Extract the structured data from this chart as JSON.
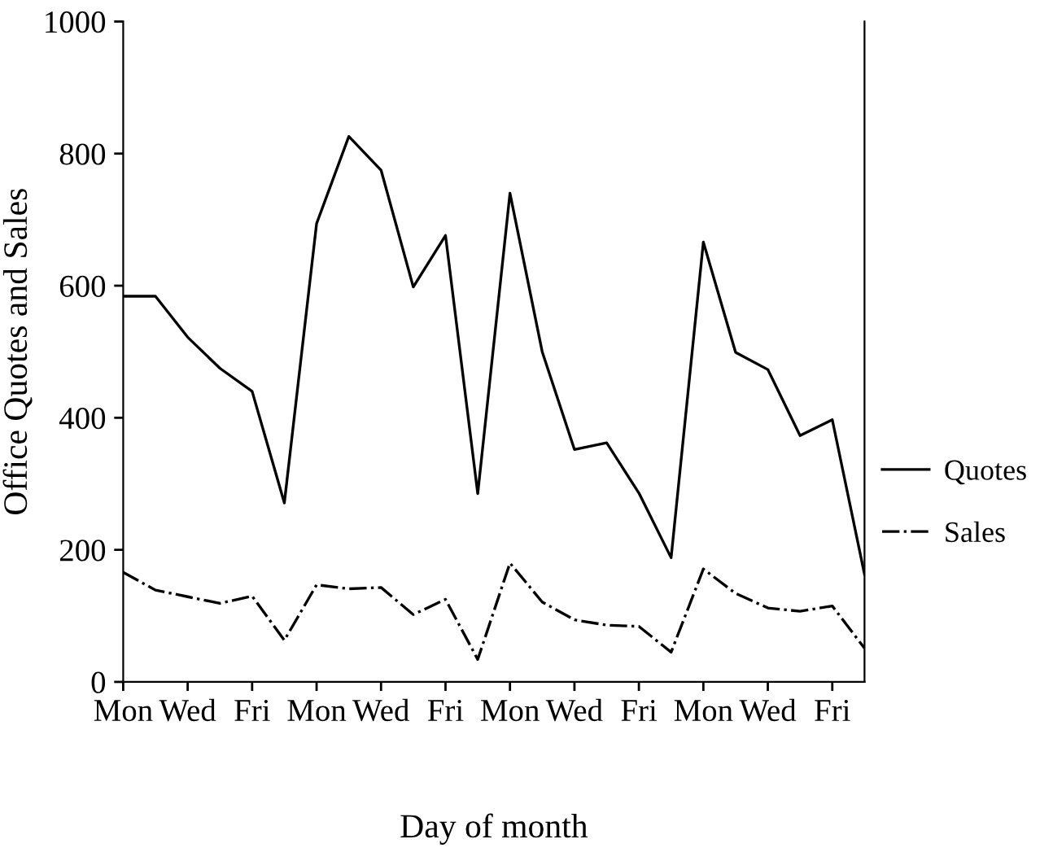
{
  "chart_data": {
    "type": "line",
    "xlabel": "Day of month",
    "ylabel": "Office Quotes and Sales",
    "categories": [
      "Mon",
      null,
      "Wed",
      null,
      "Fri",
      null,
      "Mon",
      null,
      "Wed",
      null,
      "Fri",
      null,
      "Mon",
      null,
      "Wed",
      null,
      "Fri",
      null,
      "Mon",
      null,
      "Wed",
      null,
      "Fri",
      null
    ],
    "ylim": [
      0,
      1000
    ],
    "yticks": [
      0,
      200,
      400,
      600,
      800,
      1000
    ],
    "legend": "right",
    "series": [
      {
        "name": "Quotes",
        "color": "#000000",
        "line_style": "solid",
        "values": [
          584,
          584,
          522,
          475,
          440,
          271,
          694,
          826,
          775,
          598,
          676,
          285,
          740,
          500,
          352,
          362,
          286,
          188,
          666,
          499,
          473,
          373,
          397,
          163
        ]
      },
      {
        "name": "Sales",
        "color": "#000000",
        "line_style": "dashdot",
        "values": [
          166,
          139,
          129,
          119,
          130,
          63,
          147,
          141,
          143,
          102,
          125,
          34,
          180,
          121,
          94,
          86,
          84,
          45,
          171,
          134,
          112,
          107,
          115,
          51
        ]
      }
    ]
  }
}
